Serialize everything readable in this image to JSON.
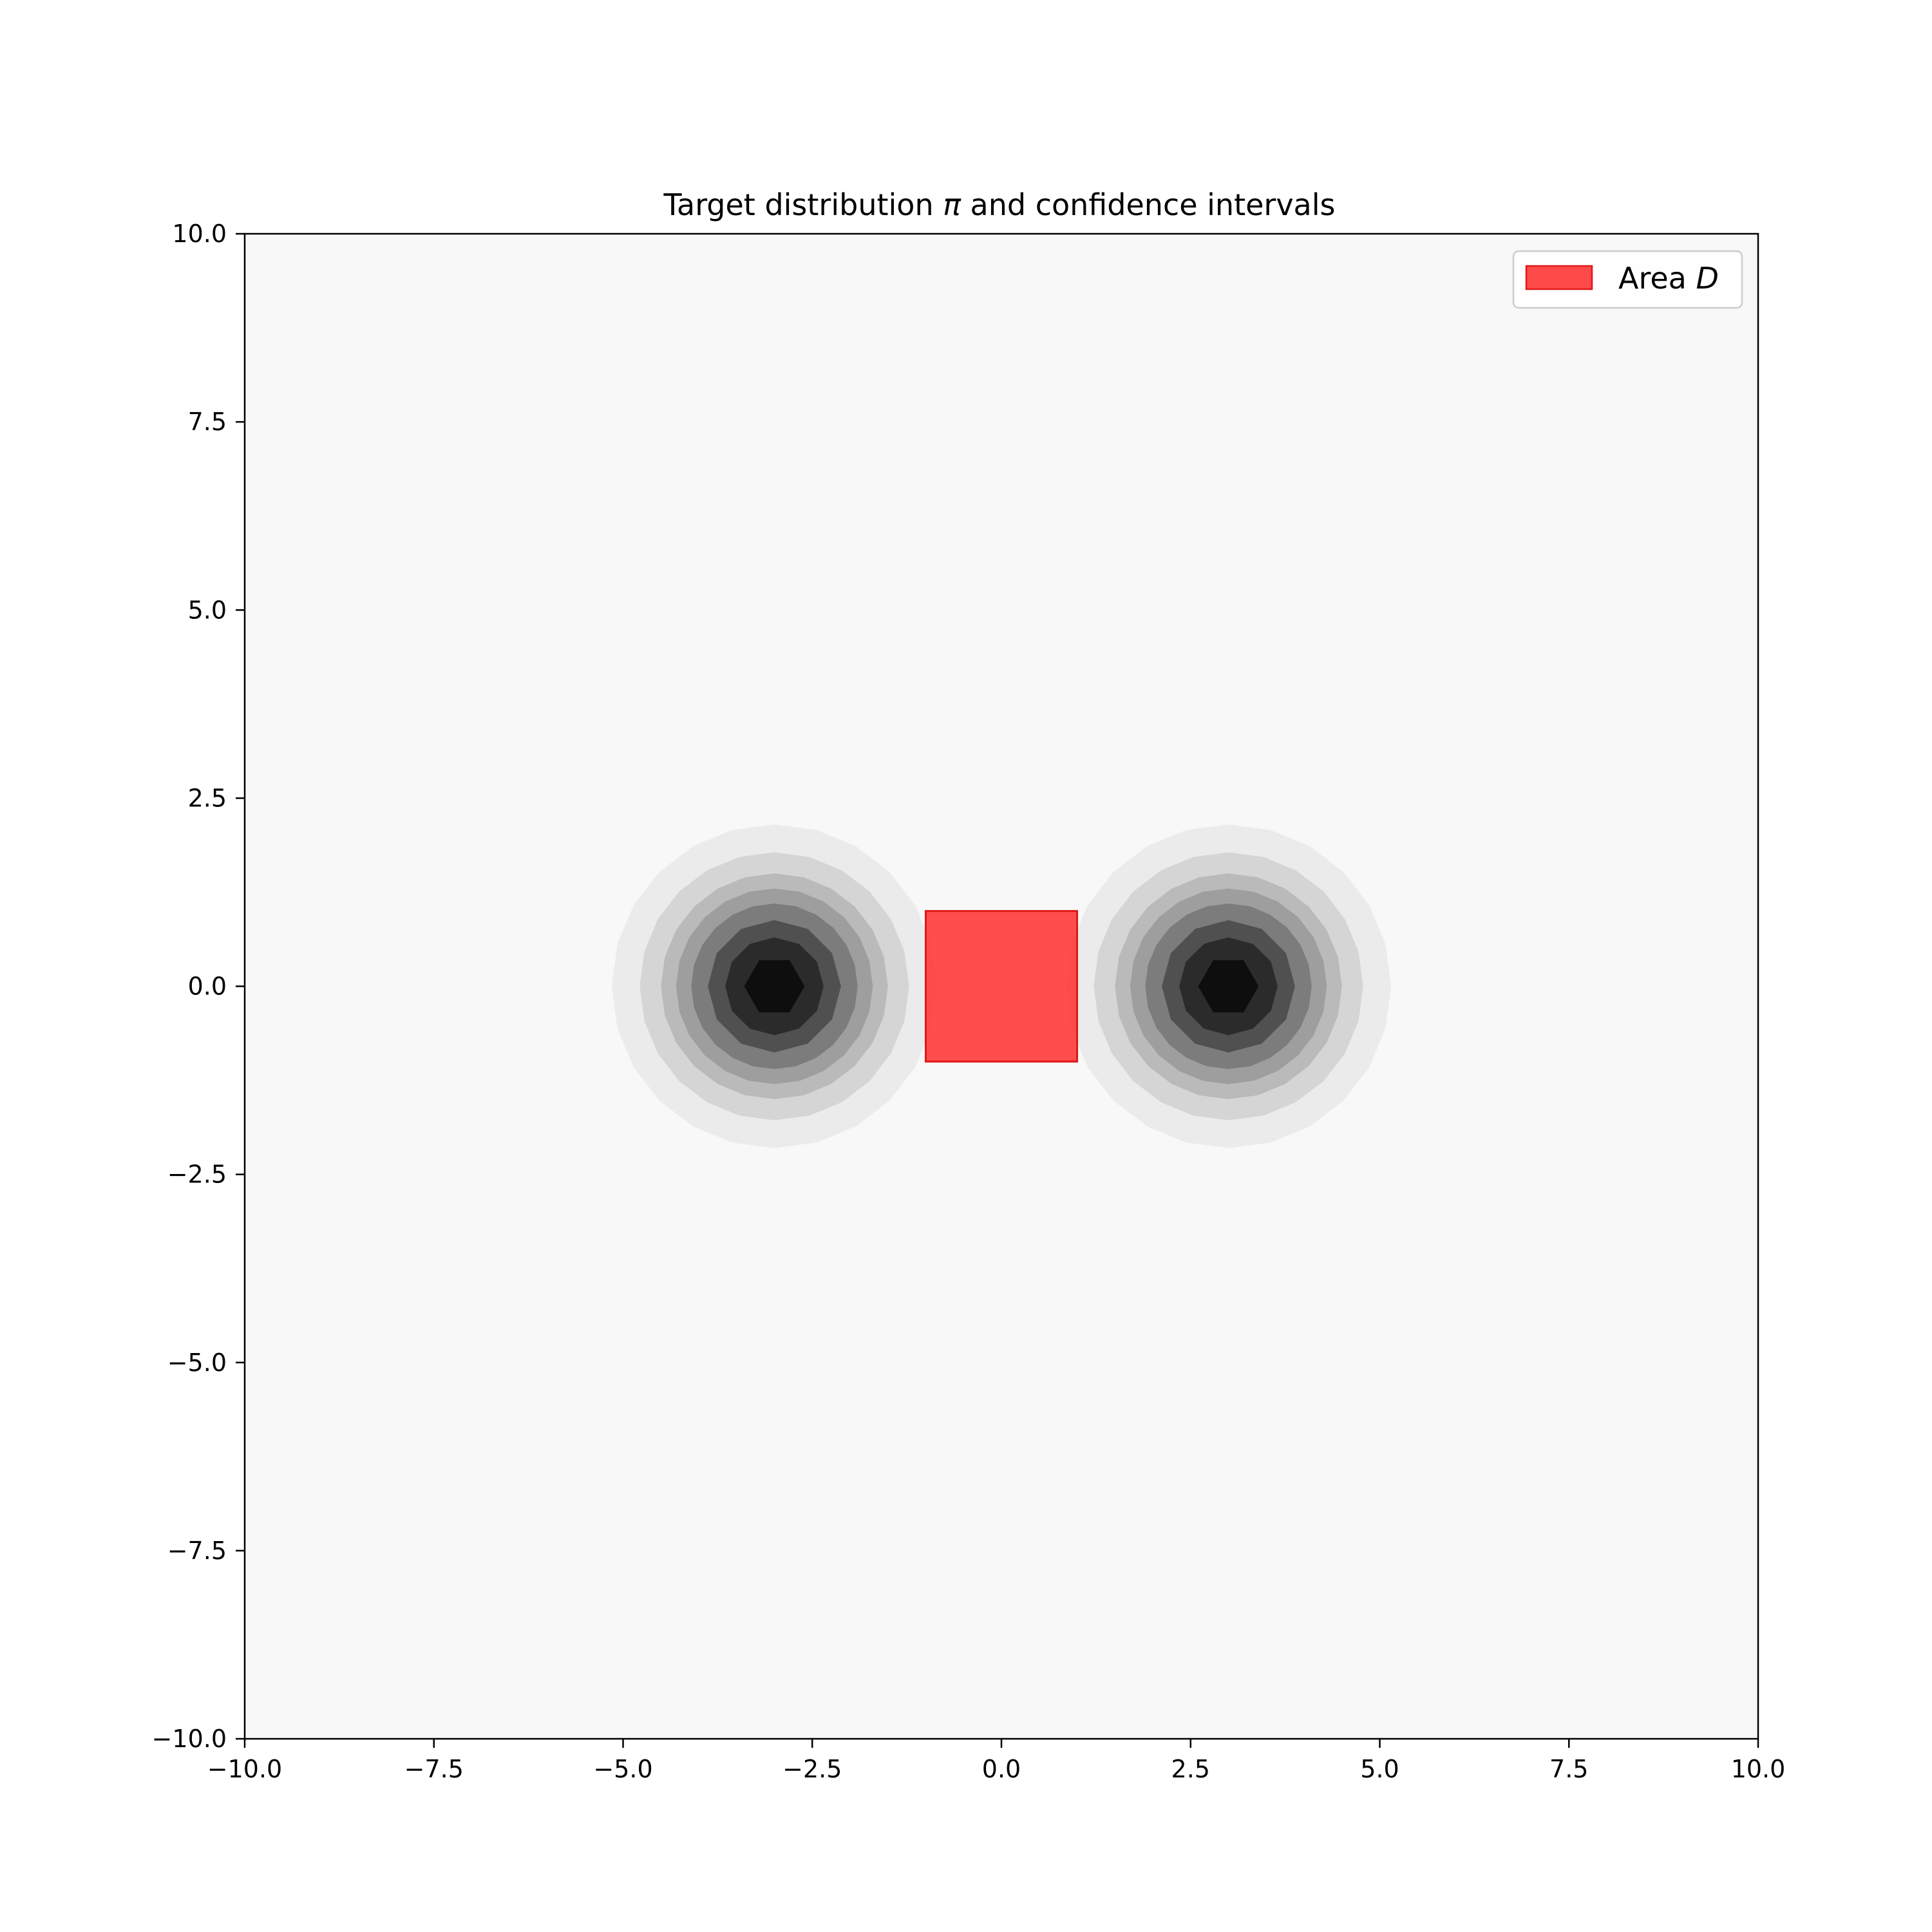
{
  "chart_data": {
    "type": "contour",
    "title": {
      "before": "Target distribution ",
      "symbol": "π",
      "after": " and confidence intervals"
    },
    "xlabel": "",
    "ylabel": "",
    "xlim": [
      -10,
      10
    ],
    "ylim": [
      -10,
      10
    ],
    "x_ticks": [
      -10,
      -7.5,
      -5,
      -2.5,
      0,
      2.5,
      5,
      7.5,
      10
    ],
    "y_ticks": [
      -10,
      -7.5,
      -5,
      -2.5,
      0,
      2.5,
      5,
      7.5,
      10
    ],
    "x_tick_labels": [
      "−10.0",
      "−7.5",
      "−5.0",
      "−2.5",
      "0.0",
      "2.5",
      "5.0",
      "7.5",
      "10.0"
    ],
    "y_tick_labels": [
      "−10.0",
      "−7.5",
      "−5.0",
      "−2.5",
      "0.0",
      "2.5",
      "5.0",
      "7.5",
      "10.0"
    ],
    "grid": false,
    "background_color": "#f8f8f8",
    "modes": [
      {
        "center": [
          -3,
          0
        ]
      },
      {
        "center": [
          3,
          0
        ]
      }
    ],
    "contour_levels": [
      {
        "radius": 2.15,
        "color": "#ebebeb"
      },
      {
        "radius": 1.78,
        "color": "#d5d5d5"
      },
      {
        "radius": 1.5,
        "color": "#bababa"
      },
      {
        "radius": 1.3,
        "color": "#9e9e9e"
      },
      {
        "radius": 1.1,
        "color": "#7c7c7c"
      },
      {
        "radius": 0.88,
        "color": "#505050"
      },
      {
        "radius": 0.65,
        "color": "#2b2b2b"
      },
      {
        "radius": 0.4,
        "color": "#0e0e0e"
      }
    ],
    "area": {
      "x": [
        -1,
        1
      ],
      "y": [
        -1,
        1
      ],
      "fill_color": "#ff2f2f",
      "fill_opacity": 0.85,
      "edge_color": "#e01818"
    },
    "legend": {
      "position": "top-right",
      "entries": [
        {
          "label": "Area ",
          "label_italic": "D",
          "color": "#ff4a4a"
        }
      ]
    }
  }
}
